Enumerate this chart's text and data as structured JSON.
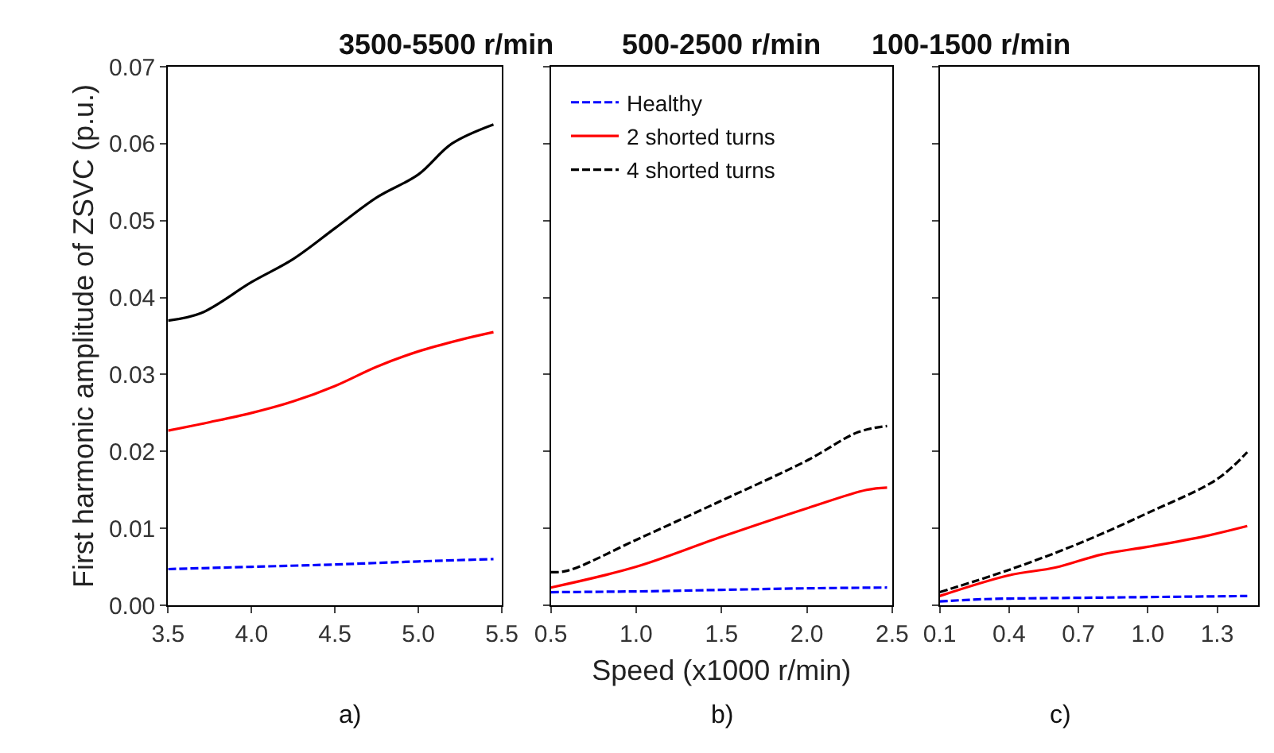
{
  "chart_data": [
    {
      "type": "line",
      "title": "3500-5500 r/min",
      "ylabel": "First harmonic amplitude of ZSVC (p.u.)",
      "annotations": [
        "a)"
      ],
      "xlim": [
        3.5,
        5.5
      ],
      "xticks": [
        {
          "value": 3.5,
          "label": "3.5"
        },
        {
          "value": 4.0,
          "label": "4.0"
        },
        {
          "value": 4.5,
          "label": "4.5"
        },
        {
          "value": 5.0,
          "label": "5.0"
        },
        {
          "value": 5.5,
          "label": "5.5"
        }
      ],
      "ylim": [
        0,
        0.07
      ],
      "yticks": [
        {
          "value": 0,
          "label": "0.00"
        },
        {
          "value": 0.01,
          "label": "0.01"
        },
        {
          "value": 0.02,
          "label": "0.02"
        },
        {
          "value": 0.03,
          "label": "0.03"
        },
        {
          "value": 0.04,
          "label": "0.04"
        },
        {
          "value": 0.05,
          "label": "0.05"
        },
        {
          "value": 0.06,
          "label": "0.06"
        },
        {
          "value": 0.07,
          "label": "0.07"
        }
      ],
      "series": [
        {
          "color": "#0000ff",
          "line_style": "dashed",
          "x": [
            3.5,
            4.0,
            4.5,
            5.0,
            5.45
          ],
          "values": [
            0.0047,
            0.005,
            0.0053,
            0.0057,
            0.006
          ]
        },
        {
          "color": "#ff0000",
          "line_style": "solid",
          "x": [
            3.5,
            3.75,
            4.0,
            4.25,
            4.5,
            4.75,
            5.0,
            5.25,
            5.45
          ],
          "values": [
            0.0227,
            0.0238,
            0.025,
            0.0265,
            0.0285,
            0.031,
            0.033,
            0.0345,
            0.0355
          ]
        },
        {
          "color": "#000000",
          "line_style": "solid",
          "x": [
            3.5,
            3.7,
            4.0,
            4.25,
            4.5,
            4.75,
            5.0,
            5.2,
            5.45
          ],
          "values": [
            0.037,
            0.038,
            0.042,
            0.045,
            0.049,
            0.053,
            0.056,
            0.06,
            0.0625
          ]
        }
      ]
    },
    {
      "type": "line",
      "title": "500-2500 r/min",
      "xlabel": "Speed (x1000 r/min)",
      "annotations": [
        "b)"
      ],
      "legend": "top left",
      "tick_labels": "x",
      "xlim": [
        0.5,
        2.5
      ],
      "xticks": [
        {
          "value": 0.5,
          "label": "0.5"
        },
        {
          "value": 1.0,
          "label": "1.0"
        },
        {
          "value": 1.5,
          "label": "1.5"
        },
        {
          "value": 2.0,
          "label": "2.0"
        },
        {
          "value": 2.5,
          "label": "2.5"
        }
      ],
      "ylim": [
        0,
        0.07
      ],
      "yticks": [
        0,
        0.01,
        0.02,
        0.03,
        0.04,
        0.05,
        0.06,
        0.07
      ],
      "series": [
        {
          "name": "Healthy",
          "color": "#0000ff",
          "line_style": "dashed",
          "x": [
            0.5,
            1.0,
            1.5,
            2.0,
            2.47
          ],
          "values": [
            0.0017,
            0.0018,
            0.002,
            0.0022,
            0.0023
          ]
        },
        {
          "name": "2 shorted turns",
          "color": "#ff0000",
          "line_style": "solid",
          "x": [
            0.5,
            1.0,
            1.5,
            2.0,
            2.35,
            2.47
          ],
          "values": [
            0.0023,
            0.005,
            0.0089,
            0.0126,
            0.015,
            0.0153
          ]
        },
        {
          "name": "4 shorted turns",
          "color": "#000000",
          "line_style": "dashed",
          "x": [
            0.5,
            0.6,
            1.0,
            1.5,
            2.0,
            2.3,
            2.47
          ],
          "values": [
            0.0043,
            0.0045,
            0.0085,
            0.0136,
            0.0188,
            0.0225,
            0.0233
          ]
        }
      ]
    },
    {
      "type": "line",
      "title": "100-1500 r/min",
      "annotations": [
        "c)"
      ],
      "tick_labels": "x",
      "xlim": [
        0.1,
        1.477
      ],
      "xticks": [
        0.1,
        0.4,
        0.7,
        {
          "value": 1.0,
          "label": "1.0"
        },
        1.3
      ],
      "ylim": [
        0,
        0.07
      ],
      "yticks": [
        0,
        0.01,
        0.02,
        0.03,
        0.04,
        0.05,
        0.06,
        0.07
      ],
      "series": [
        {
          "color": "#0000ff",
          "line_style": "dashed",
          "x": [
            0.1,
            0.3,
            0.8,
            1.43
          ],
          "values": [
            0.0005,
            0.0008,
            0.001,
            0.0012
          ]
        },
        {
          "color": "#ff0000",
          "line_style": "solid",
          "x": [
            0.1,
            0.4,
            0.6,
            0.8,
            1.0,
            1.25,
            1.43
          ],
          "values": [
            0.0012,
            0.0039,
            0.0049,
            0.0066,
            0.0076,
            0.009,
            0.0103
          ]
        },
        {
          "color": "#000000",
          "line_style": "dashed",
          "x": [
            0.1,
            0.4,
            0.7,
            1.0,
            1.3,
            1.43
          ],
          "values": [
            0.0017,
            0.0046,
            0.008,
            0.012,
            0.0164,
            0.0199
          ]
        }
      ]
    }
  ]
}
